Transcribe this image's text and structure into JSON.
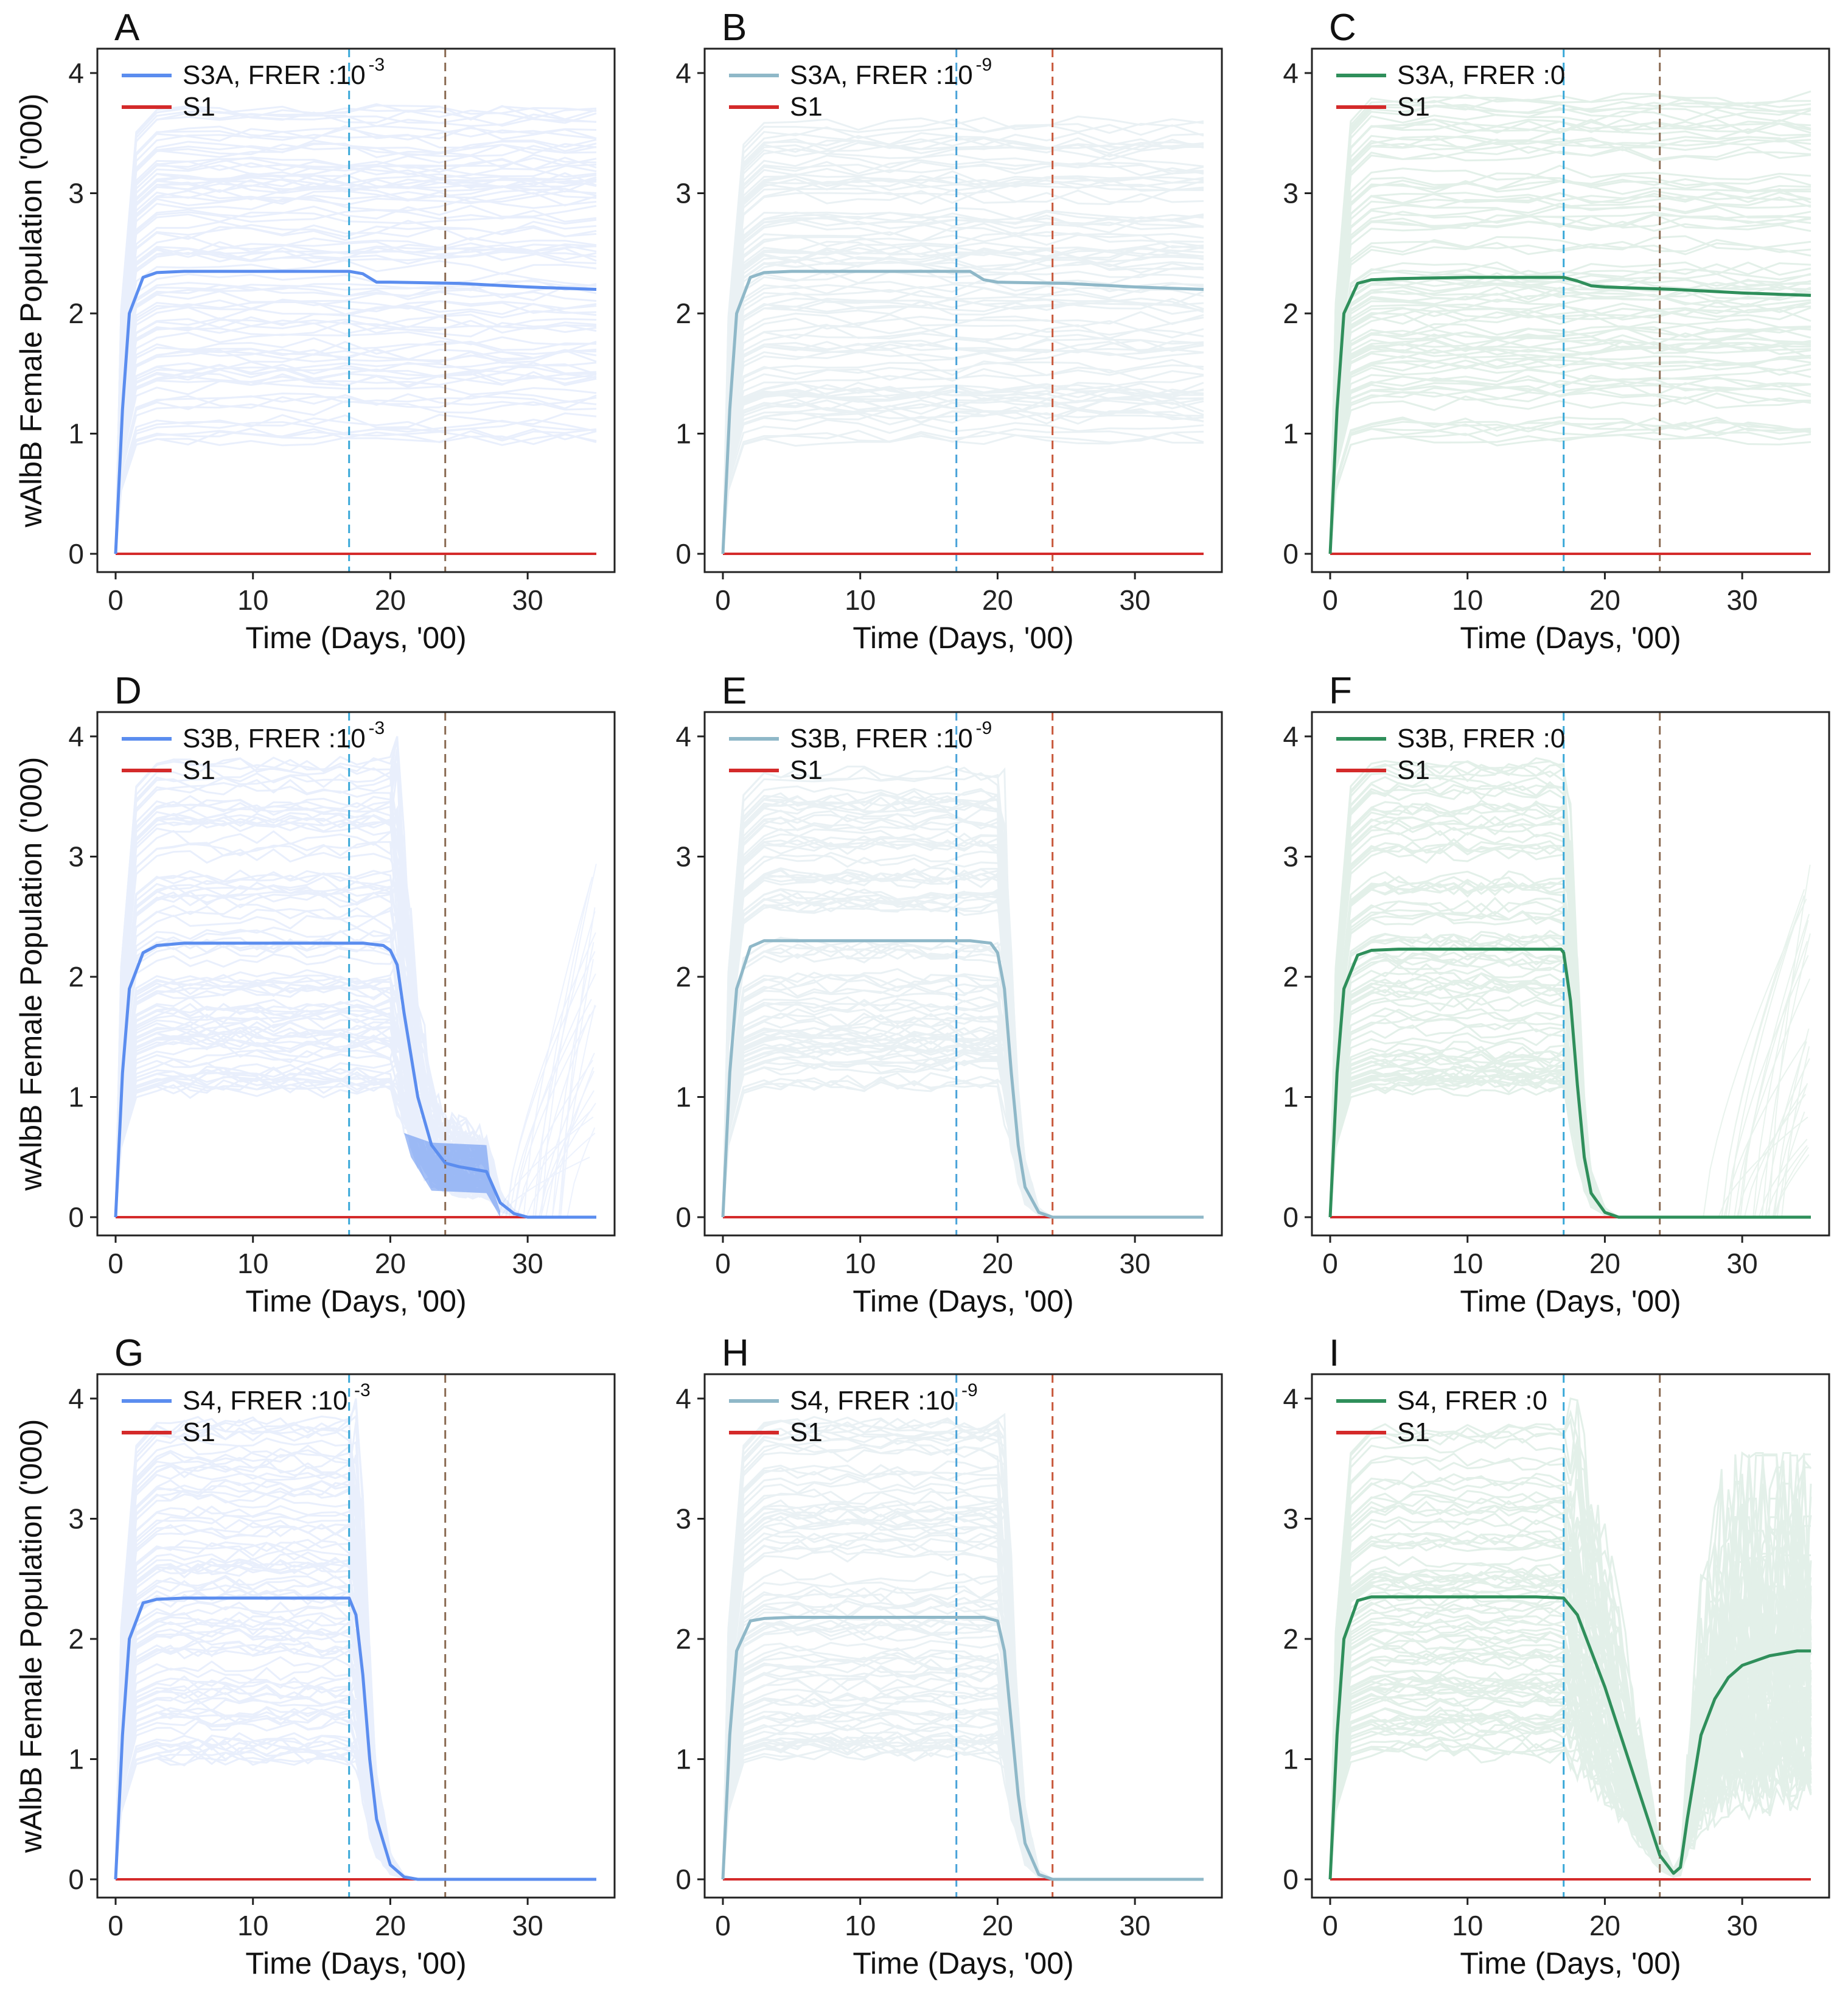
{
  "figure": {
    "y_label": "wAlbB Female Population ('000)",
    "x_label": "Time (Days, '00)"
  },
  "colors": {
    "blue": "#5b8def",
    "light_blue": "#8fb8c8",
    "green": "#2f8f5b",
    "baseline_red": "#d42a2a",
    "vline_cyan": "#39a8d8",
    "vline_blue": "#4aa3d9",
    "vline_brown": "#8a6a52",
    "vline_orange": "#c8573a"
  },
  "chart_data": [
    {
      "panel": "A",
      "type": "line",
      "row": 0,
      "col": 0,
      "color": "blue",
      "legend_main": "S3A, FRER :10",
      "legend_sup": "-3",
      "legend_s1": "S1",
      "xlim": [
        0,
        35
      ],
      "ylim": [
        0,
        4
      ],
      "xticks": [
        "0",
        "10",
        "20",
        "30"
      ],
      "yticks": [
        "0",
        "1",
        "2",
        "3",
        "4"
      ],
      "vlines": [
        {
          "x": 17,
          "color": "vline_cyan"
        },
        {
          "x": 24,
          "color": "vline_brown"
        }
      ],
      "mean_x": [
        0,
        0.5,
        1,
        2,
        3,
        5,
        10,
        15,
        17,
        18,
        19,
        20,
        25,
        30,
        35
      ],
      "mean_y": [
        0,
        1.2,
        2.0,
        2.3,
        2.34,
        2.35,
        2.35,
        2.35,
        2.35,
        2.33,
        2.26,
        2.26,
        2.25,
        2.22,
        2.2
      ],
      "spread_low": 0.95,
      "spread_high": 3.7,
      "spread_end": 35,
      "tail_curves": false,
      "s1_x": [
        0,
        35
      ],
      "s1_y": [
        0,
        0
      ]
    },
    {
      "panel": "B",
      "type": "line",
      "row": 0,
      "col": 1,
      "color": "light_blue",
      "legend_main": "S3A, FRER :10",
      "legend_sup": "-9",
      "legend_s1": "S1",
      "xlim": [
        0,
        35
      ],
      "ylim": [
        0,
        4
      ],
      "xticks": [
        "0",
        "10",
        "20",
        "30"
      ],
      "yticks": [
        "0",
        "1",
        "2",
        "3",
        "4"
      ],
      "vlines": [
        {
          "x": 17,
          "color": "vline_blue"
        },
        {
          "x": 24,
          "color": "vline_orange"
        }
      ],
      "mean_x": [
        0,
        0.5,
        1,
        2,
        3,
        5,
        10,
        15,
        18,
        19,
        20,
        25,
        30,
        35
      ],
      "mean_y": [
        0,
        1.2,
        2.0,
        2.3,
        2.34,
        2.35,
        2.35,
        2.35,
        2.35,
        2.28,
        2.26,
        2.25,
        2.22,
        2.2
      ],
      "spread_low": 0.95,
      "spread_high": 3.6,
      "spread_end": 35,
      "tail_curves": false,
      "s1_x": [
        0,
        35
      ],
      "s1_y": [
        0,
        0
      ]
    },
    {
      "panel": "C",
      "type": "line",
      "row": 0,
      "col": 2,
      "color": "green",
      "legend_main": "S3A, FRER :0",
      "legend_sup": "",
      "legend_s1": "S1",
      "xlim": [
        0,
        35
      ],
      "ylim": [
        0,
        4
      ],
      "xticks": [
        "0",
        "10",
        "20",
        "30"
      ],
      "yticks": [
        "0",
        "1",
        "2",
        "3",
        "4"
      ],
      "vlines": [
        {
          "x": 17,
          "color": "vline_cyan"
        },
        {
          "x": 24,
          "color": "vline_brown"
        }
      ],
      "mean_x": [
        0,
        0.5,
        1,
        2,
        3,
        5,
        10,
        15,
        17,
        18,
        19,
        20,
        25,
        30,
        35
      ],
      "mean_y": [
        0,
        1.2,
        2.0,
        2.25,
        2.28,
        2.29,
        2.3,
        2.3,
        2.3,
        2.27,
        2.23,
        2.22,
        2.2,
        2.17,
        2.15
      ],
      "spread_low": 0.95,
      "spread_high": 3.8,
      "spread_end": 35,
      "tail_curves": false,
      "s1_x": [
        0,
        35
      ],
      "s1_y": [
        0,
        0
      ]
    },
    {
      "panel": "D",
      "type": "line",
      "row": 1,
      "col": 0,
      "color": "blue",
      "legend_main": "S3B, FRER :10",
      "legend_sup": "-3",
      "legend_s1": "S1",
      "xlim": [
        0,
        35
      ],
      "ylim": [
        0,
        4
      ],
      "xticks": [
        "0",
        "10",
        "20",
        "30"
      ],
      "yticks": [
        "0",
        "1",
        "2",
        "3",
        "4"
      ],
      "vlines": [
        {
          "x": 17,
          "color": "vline_cyan"
        },
        {
          "x": 24,
          "color": "vline_brown"
        }
      ],
      "mean_x": [
        0,
        0.5,
        1,
        2,
        3,
        5,
        10,
        15,
        18,
        19.5,
        20,
        20.5,
        21,
        22,
        23,
        24,
        25,
        26,
        27,
        27.5,
        28,
        29,
        30,
        35
      ],
      "mean_y": [
        0,
        1.2,
        1.9,
        2.2,
        2.26,
        2.28,
        2.28,
        2.28,
        2.28,
        2.26,
        2.22,
        2.1,
        1.7,
        1.0,
        0.6,
        0.45,
        0.42,
        0.4,
        0.38,
        0.25,
        0.12,
        0.03,
        0.0,
        0.0
      ],
      "spread_low": 1.0,
      "spread_high": 3.8,
      "spread_end": 20,
      "tail_curves": true,
      "s1_x": [
        0,
        35
      ],
      "s1_y": [
        0,
        0
      ]
    },
    {
      "panel": "E",
      "type": "line",
      "row": 1,
      "col": 1,
      "color": "light_blue",
      "legend_main": "S3B, FRER :10",
      "legend_sup": "-9",
      "legend_s1": "S1",
      "xlim": [
        0,
        35
      ],
      "ylim": [
        0,
        4
      ],
      "xticks": [
        "0",
        "10",
        "20",
        "30"
      ],
      "yticks": [
        "0",
        "1",
        "2",
        "3",
        "4"
      ],
      "vlines": [
        {
          "x": 17,
          "color": "vline_blue"
        },
        {
          "x": 24,
          "color": "vline_orange"
        }
      ],
      "mean_x": [
        0,
        0.5,
        1,
        2,
        3,
        5,
        10,
        15,
        18,
        19.5,
        20,
        20.5,
        21,
        21.5,
        22,
        23,
        24,
        35
      ],
      "mean_y": [
        0,
        1.2,
        1.9,
        2.25,
        2.3,
        2.3,
        2.3,
        2.3,
        2.3,
        2.28,
        2.2,
        1.9,
        1.2,
        0.6,
        0.25,
        0.04,
        0.0,
        0.0
      ],
      "spread_low": 1.0,
      "spread_high": 3.8,
      "spread_end": 20,
      "tail_curves": false,
      "s1_x": [
        0,
        35
      ],
      "s1_y": [
        0,
        0
      ]
    },
    {
      "panel": "F",
      "type": "line",
      "row": 1,
      "col": 2,
      "color": "green",
      "legend_main": "S3B, FRER :0",
      "legend_sup": "",
      "legend_s1": "S1",
      "xlim": [
        0,
        35
      ],
      "ylim": [
        0,
        4
      ],
      "xticks": [
        "0",
        "10",
        "20",
        "30"
      ],
      "yticks": [
        "0",
        "1",
        "2",
        "3",
        "4"
      ],
      "vlines": [
        {
          "x": 17,
          "color": "vline_cyan"
        },
        {
          "x": 24,
          "color": "vline_brown"
        }
      ],
      "mean_x": [
        0,
        0.5,
        1,
        2,
        3,
        5,
        10,
        15,
        16.8,
        17,
        17.5,
        18,
        18.5,
        19,
        20,
        21,
        35
      ],
      "mean_y": [
        0,
        1.2,
        1.9,
        2.18,
        2.22,
        2.23,
        2.23,
        2.23,
        2.23,
        2.2,
        1.8,
        1.1,
        0.5,
        0.2,
        0.04,
        0.0,
        0.0
      ],
      "spread_low": 1.0,
      "spread_high": 3.8,
      "spread_end": 17,
      "tail_curves": true,
      "s1_x": [
        0,
        35
      ],
      "s1_y": [
        0,
        0
      ]
    },
    {
      "panel": "G",
      "type": "line",
      "row": 2,
      "col": 0,
      "color": "blue",
      "legend_main": "S4, FRER :10",
      "legend_sup": "-3",
      "legend_s1": "S1",
      "xlim": [
        0,
        35
      ],
      "ylim": [
        0,
        4
      ],
      "xticks": [
        "0",
        "10",
        "20",
        "30"
      ],
      "yticks": [
        "0",
        "1",
        "2",
        "3",
        "4"
      ],
      "vlines": [
        {
          "x": 17,
          "color": "vline_cyan"
        },
        {
          "x": 24,
          "color": "vline_brown"
        }
      ],
      "mean_x": [
        0,
        0.5,
        1,
        2,
        3,
        5,
        10,
        15,
        17,
        17.5,
        18,
        18.5,
        19,
        20,
        21,
        22,
        35
      ],
      "mean_y": [
        0,
        1.2,
        2.0,
        2.3,
        2.33,
        2.34,
        2.34,
        2.34,
        2.34,
        2.2,
        1.7,
        1.0,
        0.5,
        0.12,
        0.02,
        0.0,
        0.0
      ],
      "spread_low": 1.0,
      "spread_high": 3.8,
      "spread_end": 17,
      "tail_curves": false,
      "s1_x": [
        0,
        35
      ],
      "s1_y": [
        0,
        0
      ]
    },
    {
      "panel": "H",
      "type": "line",
      "row": 2,
      "col": 1,
      "color": "light_blue",
      "legend_main": "S4, FRER :10",
      "legend_sup": "-9",
      "legend_s1": "S1",
      "xlim": [
        0,
        35
      ],
      "ylim": [
        0,
        4
      ],
      "xticks": [
        "0",
        "10",
        "20",
        "30"
      ],
      "yticks": [
        "0",
        "1",
        "2",
        "3",
        "4"
      ],
      "vlines": [
        {
          "x": 17,
          "color": "vline_blue"
        },
        {
          "x": 24,
          "color": "vline_orange"
        }
      ],
      "mean_x": [
        0,
        0.5,
        1,
        2,
        3,
        5,
        10,
        15,
        19,
        20,
        20.5,
        21,
        21.5,
        22,
        23,
        24,
        35
      ],
      "mean_y": [
        0,
        1.2,
        1.9,
        2.15,
        2.17,
        2.18,
        2.18,
        2.18,
        2.18,
        2.15,
        1.9,
        1.3,
        0.7,
        0.3,
        0.04,
        0.0,
        0.0
      ],
      "spread_low": 1.0,
      "spread_high": 3.8,
      "spread_end": 20,
      "tail_curves": false,
      "s1_x": [
        0,
        35
      ],
      "s1_y": [
        0,
        0
      ]
    },
    {
      "panel": "I",
      "type": "line",
      "row": 2,
      "col": 2,
      "color": "green",
      "legend_main": "S4, FRER :0",
      "legend_sup": "",
      "legend_s1": "S1",
      "xlim": [
        0,
        35
      ],
      "ylim": [
        0,
        4
      ],
      "xticks": [
        "0",
        "10",
        "20",
        "30"
      ],
      "yticks": [
        "0",
        "1",
        "2",
        "3",
        "4"
      ],
      "vlines": [
        {
          "x": 17,
          "color": "vline_cyan"
        },
        {
          "x": 24,
          "color": "vline_brown"
        }
      ],
      "mean_x": [
        0,
        0.5,
        1,
        2,
        3,
        5,
        10,
        15,
        17,
        18,
        19,
        20,
        21,
        22,
        23,
        24,
        25,
        25.5,
        26,
        27,
        28,
        29,
        30,
        32,
        34,
        35
      ],
      "mean_y": [
        0,
        1.2,
        2.0,
        2.32,
        2.35,
        2.35,
        2.35,
        2.35,
        2.34,
        2.2,
        1.9,
        1.6,
        1.25,
        0.9,
        0.55,
        0.2,
        0.05,
        0.1,
        0.5,
        1.2,
        1.5,
        1.68,
        1.78,
        1.86,
        1.9,
        1.9
      ],
      "spread_low": 1.0,
      "spread_high": 3.8,
      "spread_end": 17,
      "tail_curves": true,
      "s1_x": [
        0,
        35
      ],
      "s1_y": [
        0,
        0
      ]
    }
  ]
}
